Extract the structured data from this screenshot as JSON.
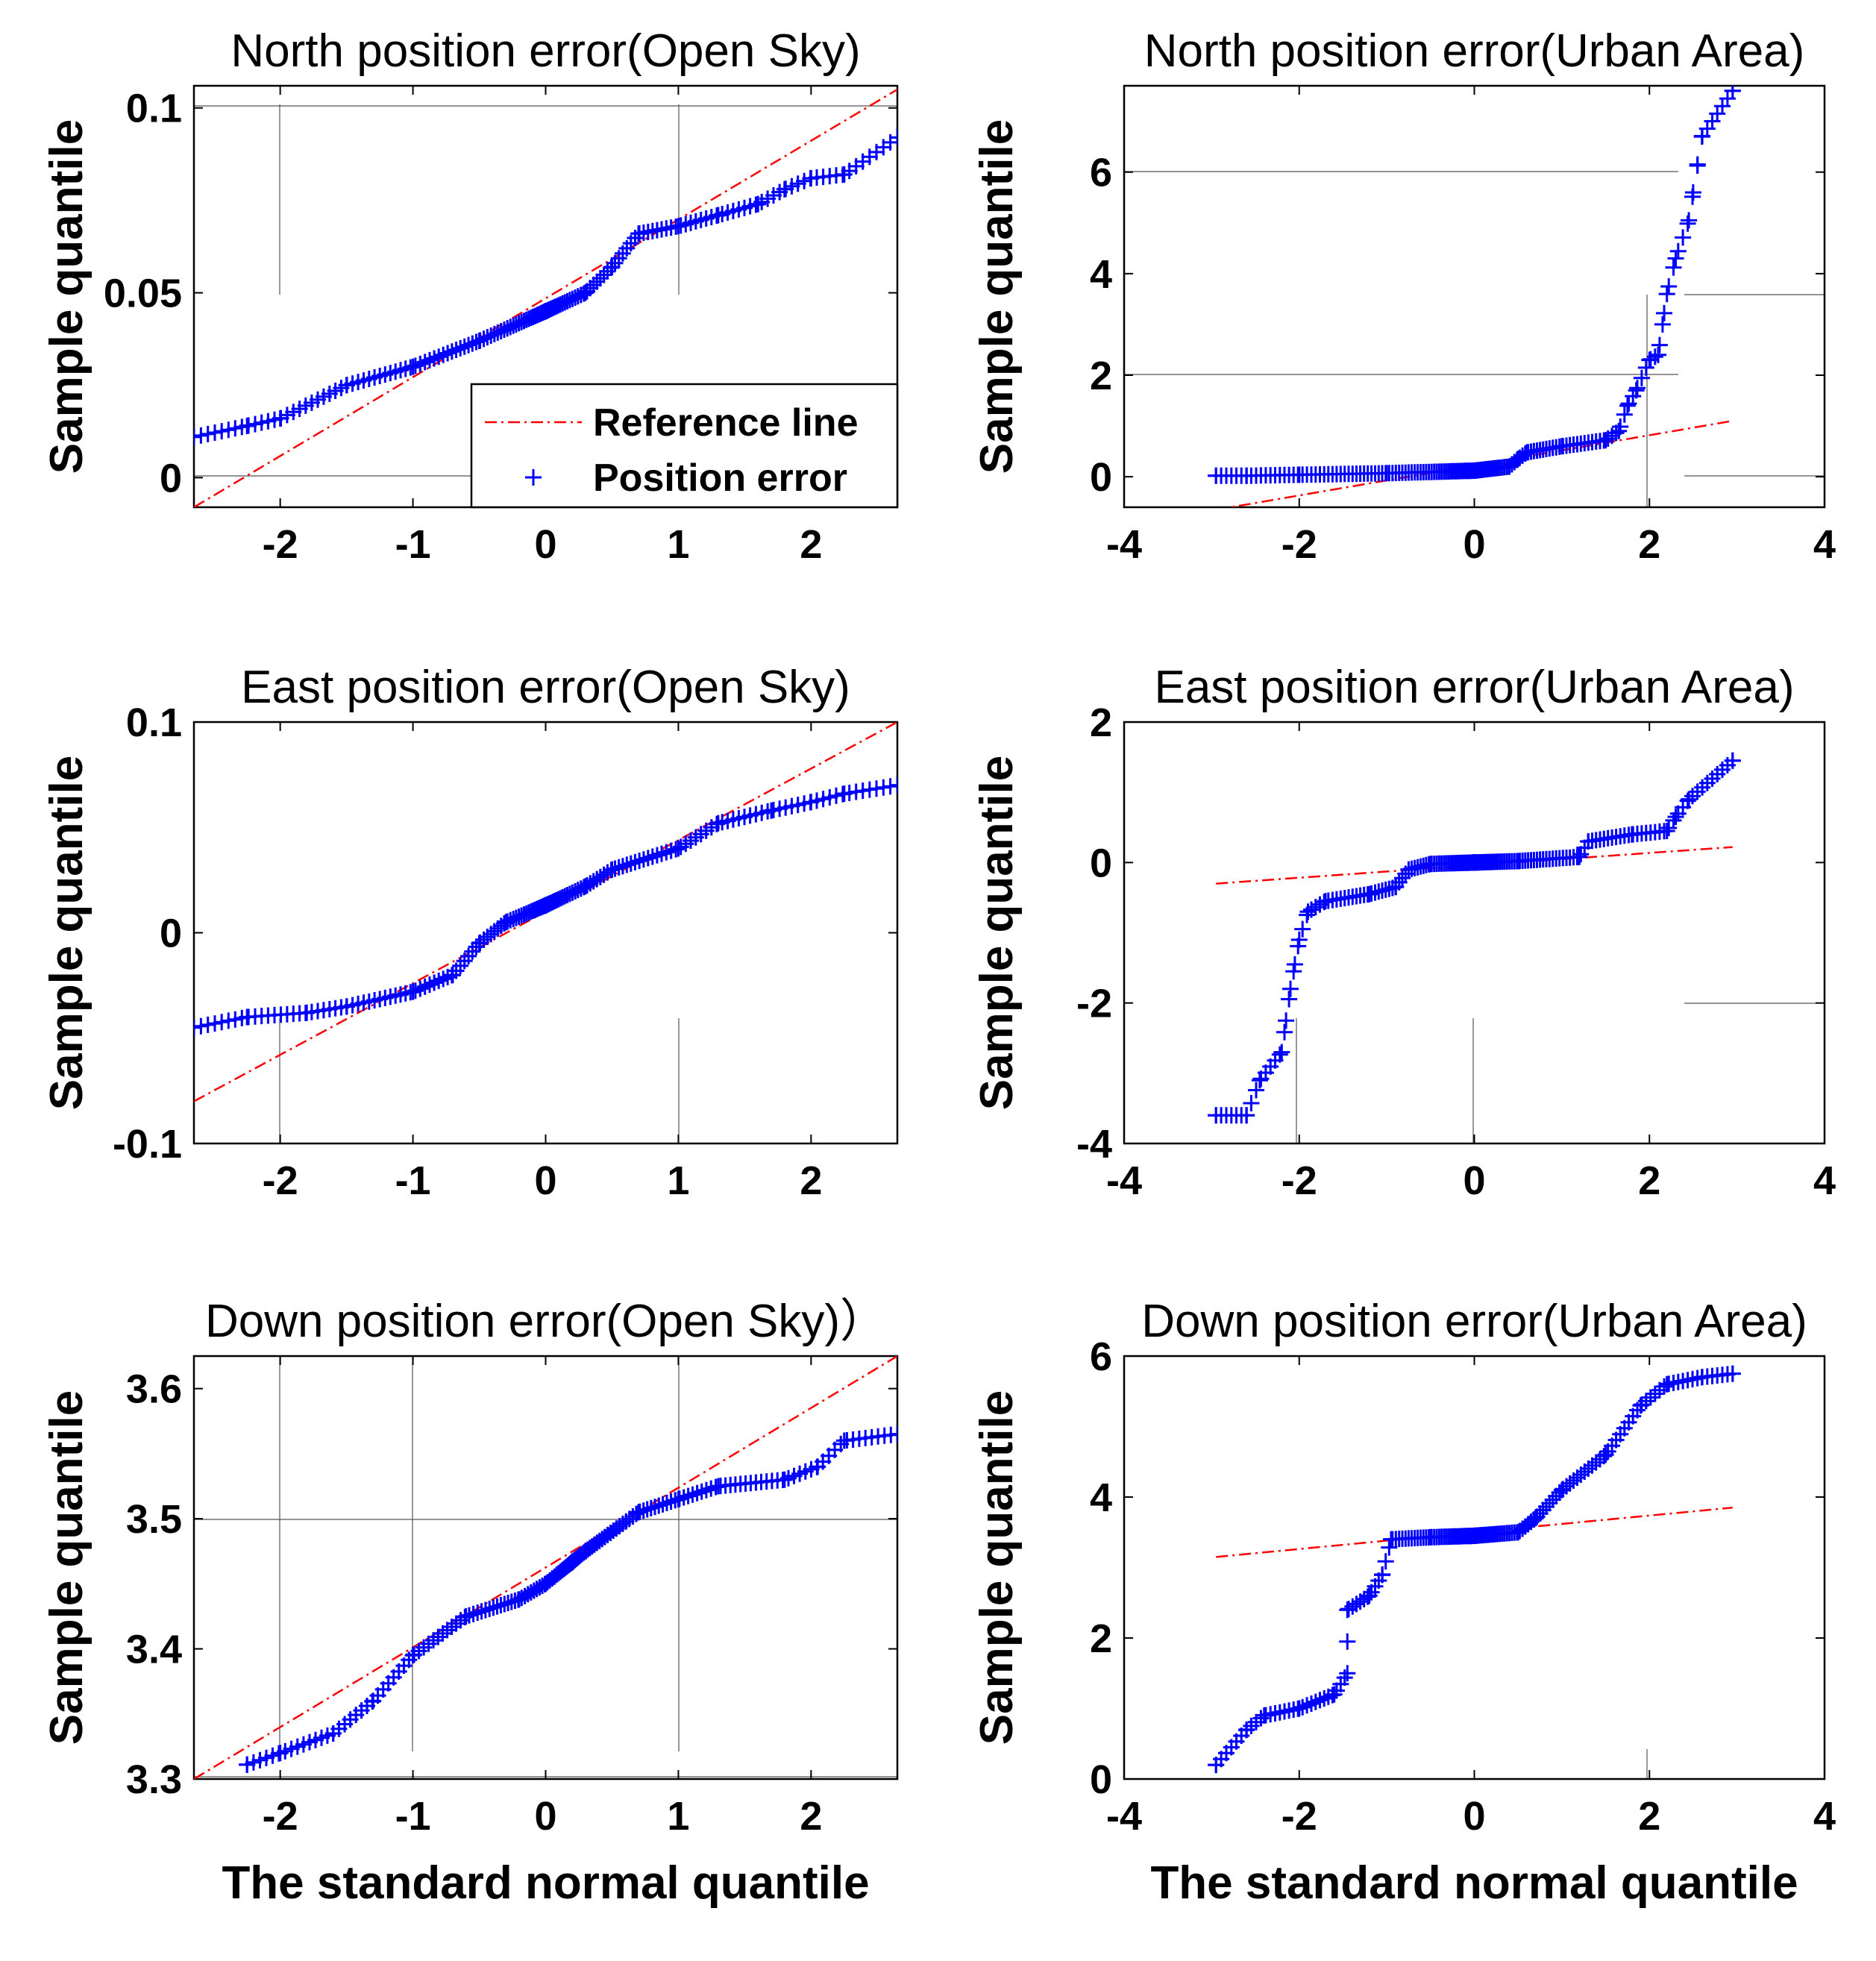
{
  "colors": {
    "points": "#0000ff",
    "reference": "#ff0000",
    "axes": "#000000",
    "grid": "#555555"
  },
  "legend": {
    "reference_label": "Reference line",
    "points_label": "Position error",
    "placement": "inside lower-right",
    "marker": "+"
  },
  "chart_data": [
    {
      "type": "scatter",
      "title": "North position error(Open Sky)",
      "xlabel": "",
      "ylabel": "Sample quantile",
      "xlim": [
        -2.65,
        2.65
      ],
      "ylim": [
        -0.008,
        0.106
      ],
      "xticks": [
        -2,
        -1,
        0,
        1,
        2
      ],
      "xtick_labels": [
        "-2",
        "-1",
        "0",
        "1",
        "2"
      ],
      "yticks": [
        0,
        0.05,
        0.1
      ],
      "ytick_labels": [
        "0",
        "0.05",
        "0.1"
      ],
      "reference_line": {
        "x": [
          -2.65,
          2.65
        ],
        "y": [
          -0.008,
          0.105
        ]
      },
      "series": [
        {
          "name": "Position error",
          "anchors": [
            [
              -2.65,
              0.011
            ],
            [
              -2.25,
              0.014
            ],
            [
              -2.0,
              0.016
            ],
            [
              -1.5,
              0.025
            ],
            [
              -1.0,
              0.03
            ],
            [
              -0.5,
              0.037
            ],
            [
              0.0,
              0.045
            ],
            [
              0.3,
              0.05
            ],
            [
              0.5,
              0.057
            ],
            [
              0.7,
              0.066
            ],
            [
              1.0,
              0.068
            ],
            [
              1.3,
              0.071
            ],
            [
              1.6,
              0.074
            ],
            [
              1.8,
              0.078
            ],
            [
              2.0,
              0.081
            ],
            [
              2.25,
              0.082
            ],
            [
              2.65,
              0.092
            ]
          ]
        }
      ]
    },
    {
      "type": "scatter",
      "title": "North position error(Urban Area)",
      "xlabel": "",
      "ylabel": "Sample quantile",
      "xlim": [
        -4,
        4
      ],
      "ylim": [
        -0.6,
        7.7
      ],
      "xticks": [
        -4,
        -2,
        0,
        2,
        4
      ],
      "xtick_labels": [
        "-4",
        "-2",
        "0",
        "2",
        "4"
      ],
      "yticks": [
        0,
        2,
        4,
        6
      ],
      "ytick_labels": [
        "0",
        "2",
        "4",
        "6"
      ],
      "reference_line": {
        "x": [
          -2.95,
          2.95
        ],
        "y": [
          -0.65,
          1.1
        ]
      },
      "series": [
        {
          "name": "Position error",
          "anchors": [
            [
              -2.95,
              0.02
            ],
            [
              -2.6,
              0.02
            ],
            [
              -2.0,
              0.04
            ],
            [
              -1.0,
              0.07
            ],
            [
              0.0,
              0.12
            ],
            [
              0.4,
              0.2
            ],
            [
              0.5,
              0.35
            ],
            [
              0.6,
              0.48
            ],
            [
              1.0,
              0.6
            ],
            [
              1.5,
              0.72
            ],
            [
              1.65,
              0.9
            ],
            [
              1.75,
              1.4
            ],
            [
              1.85,
              1.7
            ],
            [
              2.0,
              2.3
            ],
            [
              2.1,
              2.4
            ],
            [
              2.2,
              3.6
            ],
            [
              2.3,
              4.3
            ],
            [
              2.45,
              5.05
            ],
            [
              2.6,
              6.7
            ],
            [
              2.95,
              7.6
            ]
          ]
        }
      ]
    },
    {
      "type": "scatter",
      "title": "East position error(Open Sky)",
      "xlabel": "",
      "ylabel": "Sample quantile",
      "xlim": [
        -2.65,
        2.65
      ],
      "ylim": [
        -0.1,
        0.1
      ],
      "xticks": [
        -2,
        -1,
        0,
        1,
        2
      ],
      "xtick_labels": [
        "-2",
        "-1",
        "0",
        "1",
        "2"
      ],
      "yticks": [
        -0.1,
        0,
        0.1
      ],
      "ytick_labels": [
        "-0.1",
        "0",
        "0.1"
      ],
      "reference_line": {
        "x": [
          -2.65,
          2.65
        ],
        "y": [
          -0.08,
          0.1
        ]
      },
      "series": [
        {
          "name": "Position error",
          "anchors": [
            [
              -2.65,
              -0.045
            ],
            [
              -2.25,
              -0.04
            ],
            [
              -1.8,
              -0.038
            ],
            [
              -1.5,
              -0.035
            ],
            [
              -1.0,
              -0.028
            ],
            [
              -0.7,
              -0.02
            ],
            [
              -0.5,
              -0.005
            ],
            [
              -0.3,
              0.005
            ],
            [
              0.0,
              0.013
            ],
            [
              0.3,
              0.022
            ],
            [
              0.5,
              0.03
            ],
            [
              1.0,
              0.04
            ],
            [
              1.3,
              0.052
            ],
            [
              1.7,
              0.058
            ],
            [
              2.0,
              0.062
            ],
            [
              2.25,
              0.066
            ],
            [
              2.65,
              0.07
            ]
          ]
        }
      ]
    },
    {
      "type": "scatter",
      "title": "East position error(Urban Area)",
      "xlabel": "",
      "ylabel": "Sample quantile",
      "xlim": [
        -4,
        4
      ],
      "ylim": [
        -4,
        2
      ],
      "xticks": [
        -4,
        -2,
        0,
        2,
        4
      ],
      "xtick_labels": [
        "-4",
        "-2",
        "0",
        "2",
        "4"
      ],
      "yticks": [
        -4,
        -2,
        0,
        2
      ],
      "ytick_labels": [
        "-4",
        "-2",
        "0",
        "2"
      ],
      "reference_line": {
        "x": [
          -2.95,
          2.95
        ],
        "y": [
          -0.3,
          0.22
        ]
      },
      "series": [
        {
          "name": "Position error",
          "anchors": [
            [
              -2.95,
              -3.6
            ],
            [
              -2.6,
              -3.6
            ],
            [
              -2.45,
              -3.1
            ],
            [
              -2.2,
              -2.7
            ],
            [
              -2.1,
              -1.8
            ],
            [
              -2.0,
              -1.1
            ],
            [
              -1.9,
              -0.7
            ],
            [
              -1.7,
              -0.55
            ],
            [
              -1.2,
              -0.45
            ],
            [
              -0.9,
              -0.35
            ],
            [
              -0.75,
              -0.1
            ],
            [
              -0.5,
              -0.02
            ],
            [
              0.0,
              0.0
            ],
            [
              0.5,
              0.02
            ],
            [
              1.2,
              0.08
            ],
            [
              1.3,
              0.3
            ],
            [
              1.8,
              0.4
            ],
            [
              2.2,
              0.45
            ],
            [
              2.3,
              0.65
            ],
            [
              2.45,
              0.9
            ],
            [
              2.95,
              1.45
            ]
          ]
        }
      ]
    },
    {
      "type": "scatter",
      "title": "Down position error(Open Sky)）",
      "xlabel": "The standard normal quantile",
      "ylabel": "Sample quantile",
      "xlim": [
        -2.65,
        2.65
      ],
      "ylim": [
        3.3,
        3.625
      ],
      "xticks": [
        -2,
        -1,
        0,
        1,
        2
      ],
      "xtick_labels": [
        "-2",
        "-1",
        "0",
        "1",
        "2"
      ],
      "yticks": [
        3.3,
        3.4,
        3.5,
        3.6
      ],
      "ytick_labels": [
        "3.3",
        "3.4",
        "3.5",
        "3.6"
      ],
      "reference_line": {
        "x": [
          -2.65,
          2.65
        ],
        "y": [
          3.3,
          3.625
        ]
      },
      "series": [
        {
          "name": "Position error",
          "anchors": [
            [
              -2.25,
              3.311
            ],
            [
              -2.0,
              3.32
            ],
            [
              -1.6,
              3.335
            ],
            [
              -1.3,
              3.36
            ],
            [
              -1.0,
              3.395
            ],
            [
              -0.6,
              3.425
            ],
            [
              -0.2,
              3.438
            ],
            [
              0.0,
              3.45
            ],
            [
              0.3,
              3.475
            ],
            [
              0.7,
              3.505
            ],
            [
              1.0,
              3.515
            ],
            [
              1.3,
              3.525
            ],
            [
              1.8,
              3.53
            ],
            [
              2.05,
              3.54
            ],
            [
              2.25,
              3.56
            ],
            [
              2.65,
              3.565
            ]
          ]
        }
      ]
    },
    {
      "type": "scatter",
      "title": "Down position error(Urban Area)",
      "xlabel": "The standard normal quantile",
      "ylabel": "Sample quantile",
      "xlim": [
        -4,
        4
      ],
      "ylim": [
        0,
        6
      ],
      "xticks": [
        -4,
        -2,
        0,
        2,
        4
      ],
      "xtick_labels": [
        "-4",
        "-2",
        "0",
        "2",
        "4"
      ],
      "yticks": [
        0,
        2,
        4,
        6
      ],
      "ytick_labels": [
        "0",
        "2",
        "4",
        "6"
      ],
      "reference_line": {
        "x": [
          -2.95,
          2.95
        ],
        "y": [
          3.15,
          3.85
        ]
      },
      "series": [
        {
          "name": "Position error",
          "anchors": [
            [
              -2.95,
              0.2
            ],
            [
              -2.6,
              0.7
            ],
            [
              -2.4,
              0.9
            ],
            [
              -2.0,
              1.0
            ],
            [
              -1.6,
              1.2
            ],
            [
              -1.45,
              1.5
            ],
            [
              -1.45,
              2.4
            ],
            [
              -1.2,
              2.6
            ],
            [
              -1.05,
              2.9
            ],
            [
              -0.95,
              3.4
            ],
            [
              -0.5,
              3.43
            ],
            [
              0.0,
              3.45
            ],
            [
              0.5,
              3.5
            ],
            [
              0.7,
              3.7
            ],
            [
              1.0,
              4.1
            ],
            [
              1.5,
              4.6
            ],
            [
              1.9,
              5.3
            ],
            [
              2.2,
              5.6
            ],
            [
              2.6,
              5.7
            ],
            [
              2.95,
              5.75
            ]
          ]
        }
      ]
    }
  ]
}
